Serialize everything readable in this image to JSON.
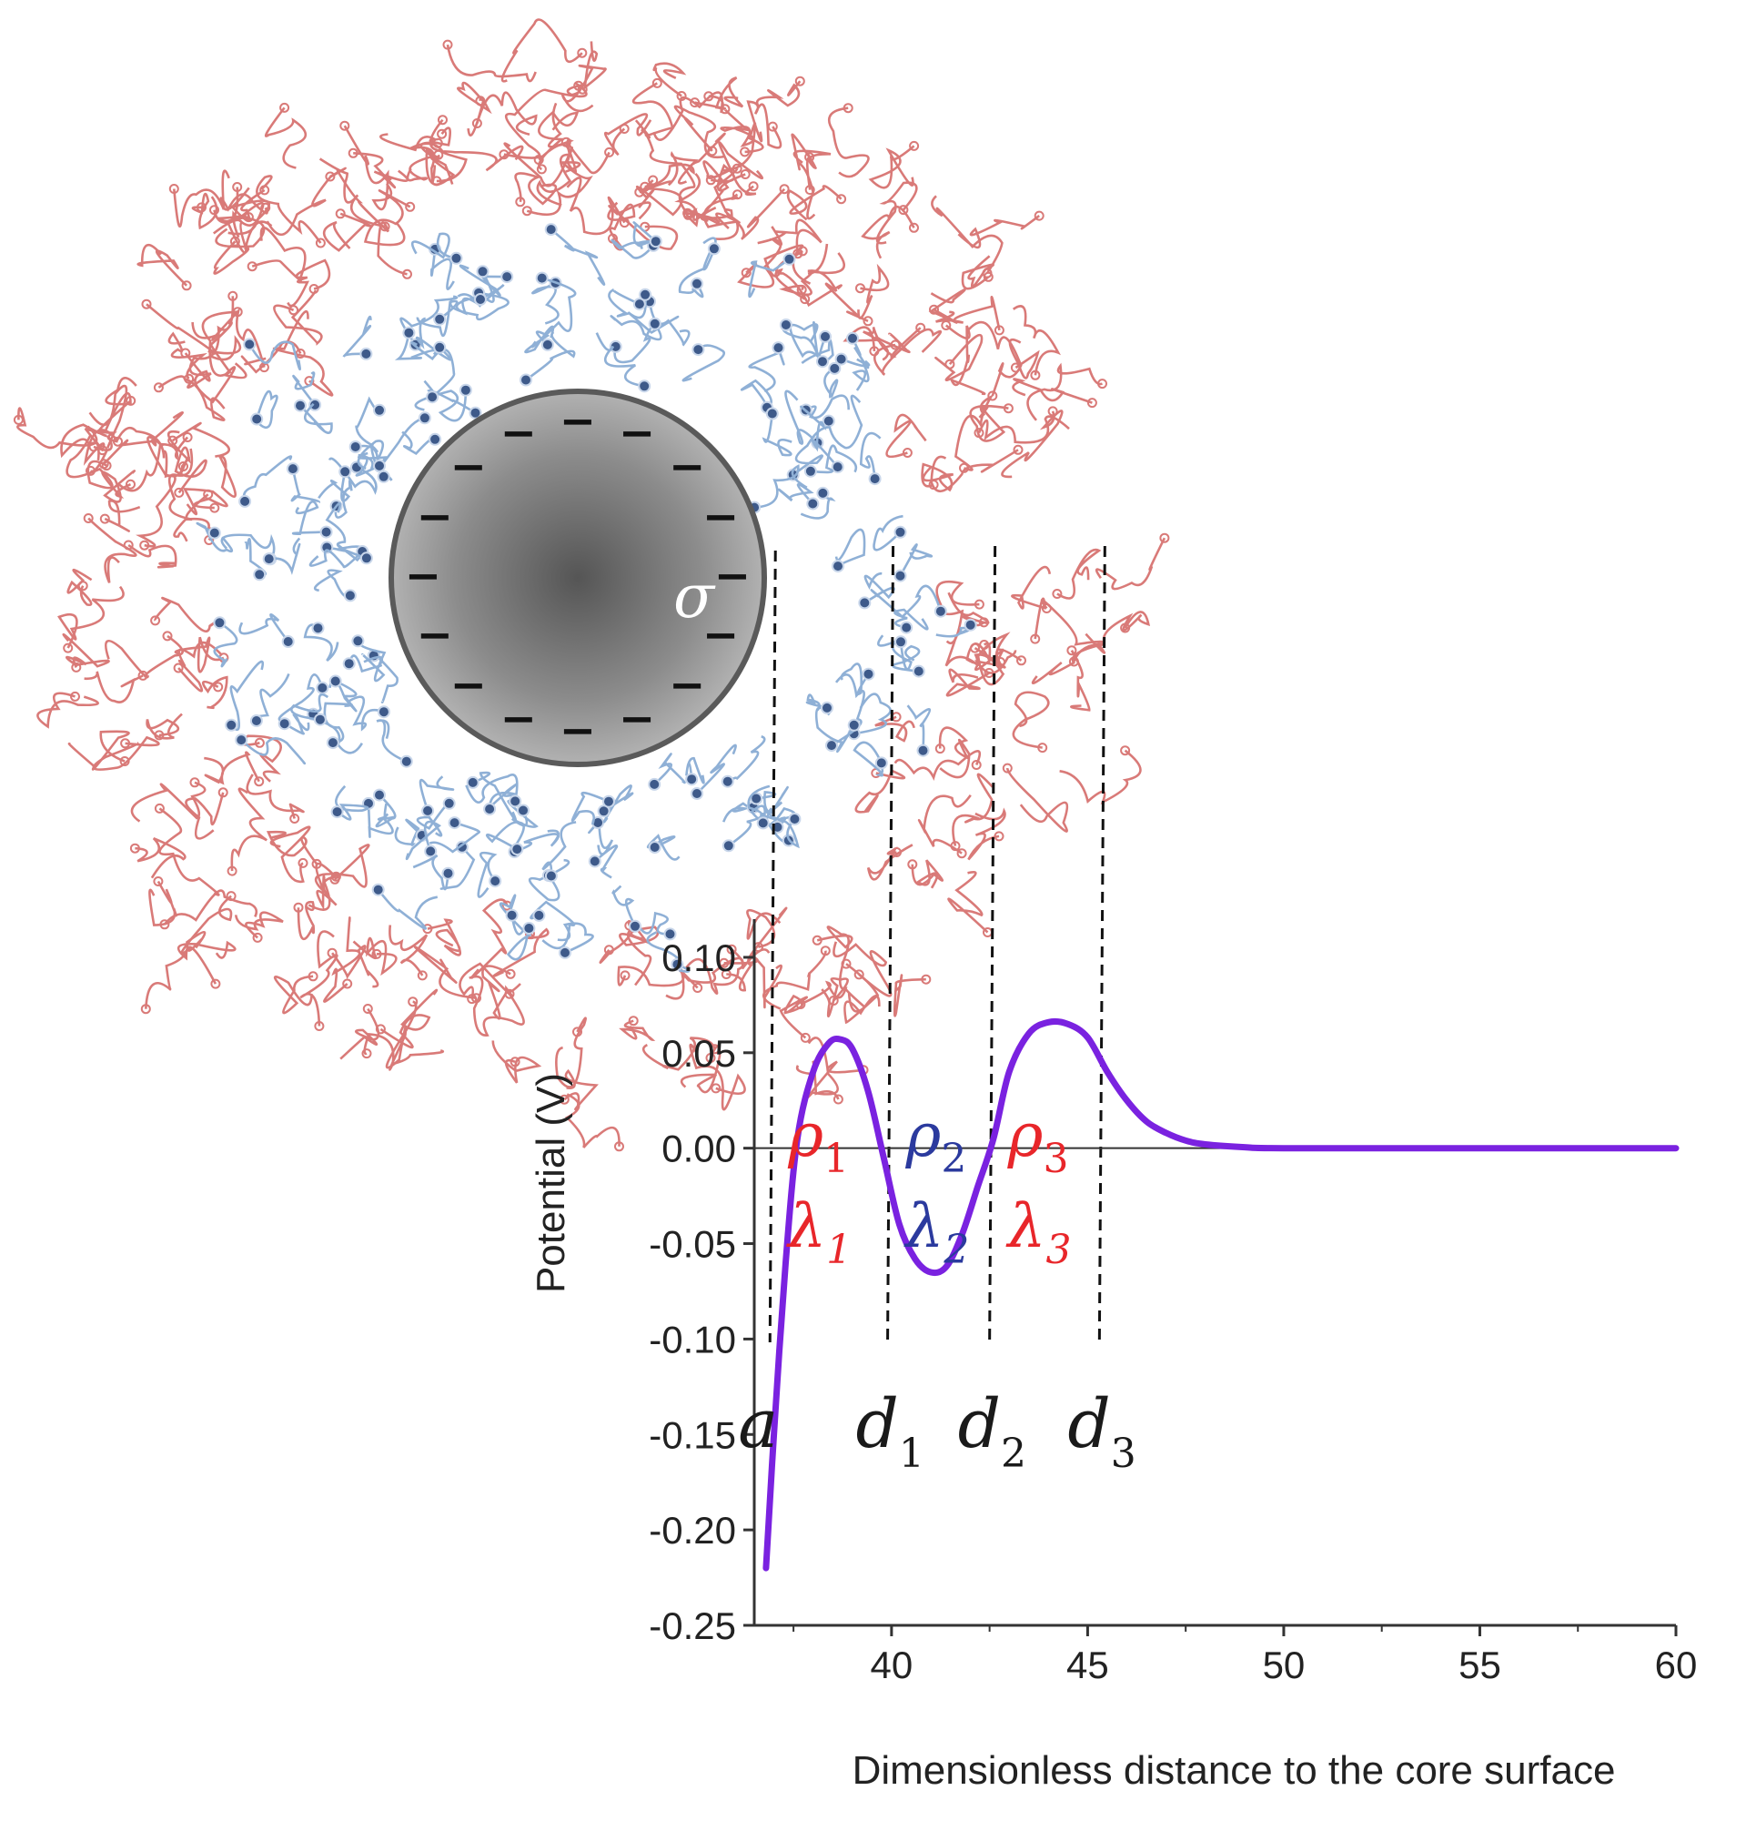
{
  "chart_data": {
    "type": "line",
    "xlabel": "Dimensionless distance to the  core surface",
    "ylabel": "Potential (V)",
    "xlim": [
      36.5,
      60
    ],
    "ylim": [
      -0.25,
      0.12
    ],
    "x_ticks": [
      "40",
      "45",
      "50",
      "55",
      "60"
    ],
    "y_ticks": [
      "0.10",
      "0.05",
      "0.00",
      "-0.05",
      "-0.10",
      "-0.15",
      "-0.20",
      "-0.25"
    ],
    "grid": false,
    "series": [
      {
        "color": "#7a22e0",
        "x": [
          36.8,
          37.0,
          37.3,
          37.6,
          38.0,
          38.4,
          38.7,
          39.0,
          39.4,
          39.8,
          40.2,
          40.6,
          41.0,
          41.4,
          41.8,
          42.2,
          42.6,
          43.0,
          43.5,
          44.0,
          44.5,
          45.0,
          45.5,
          46.0,
          46.5,
          47.0,
          47.5,
          48.0,
          49.0,
          50.0,
          55.0,
          60.0
        ],
        "y": [
          -0.22,
          -0.15,
          -0.06,
          0.005,
          0.04,
          0.055,
          0.057,
          0.052,
          0.03,
          -0.005,
          -0.04,
          -0.058,
          -0.065,
          -0.062,
          -0.045,
          -0.02,
          0.005,
          0.04,
          0.06,
          0.066,
          0.065,
          0.058,
          0.04,
          0.025,
          0.014,
          0.008,
          0.004,
          0.002,
          0.0005,
          0.0,
          0.0,
          0.0
        ]
      }
    ],
    "boundaries": [
      {
        "label": "a",
        "x": 36.9
      },
      {
        "label": "d",
        "sub": "1",
        "x": 39.9
      },
      {
        "label": "d",
        "sub": "2",
        "x": 42.5
      },
      {
        "label": "d",
        "sub": "3",
        "x": 45.3
      }
    ],
    "region_labels": [
      {
        "rho": "ρ",
        "lambda": "λ",
        "sub": "1",
        "color": "#e8262a"
      },
      {
        "rho": "ρ",
        "lambda": "λ",
        "sub": "2",
        "color": "#2b3a9e"
      },
      {
        "rho": "ρ",
        "lambda": "λ",
        "sub": "3",
        "color": "#e8262a"
      }
    ],
    "core_label": "σ",
    "core_charge": "−"
  }
}
